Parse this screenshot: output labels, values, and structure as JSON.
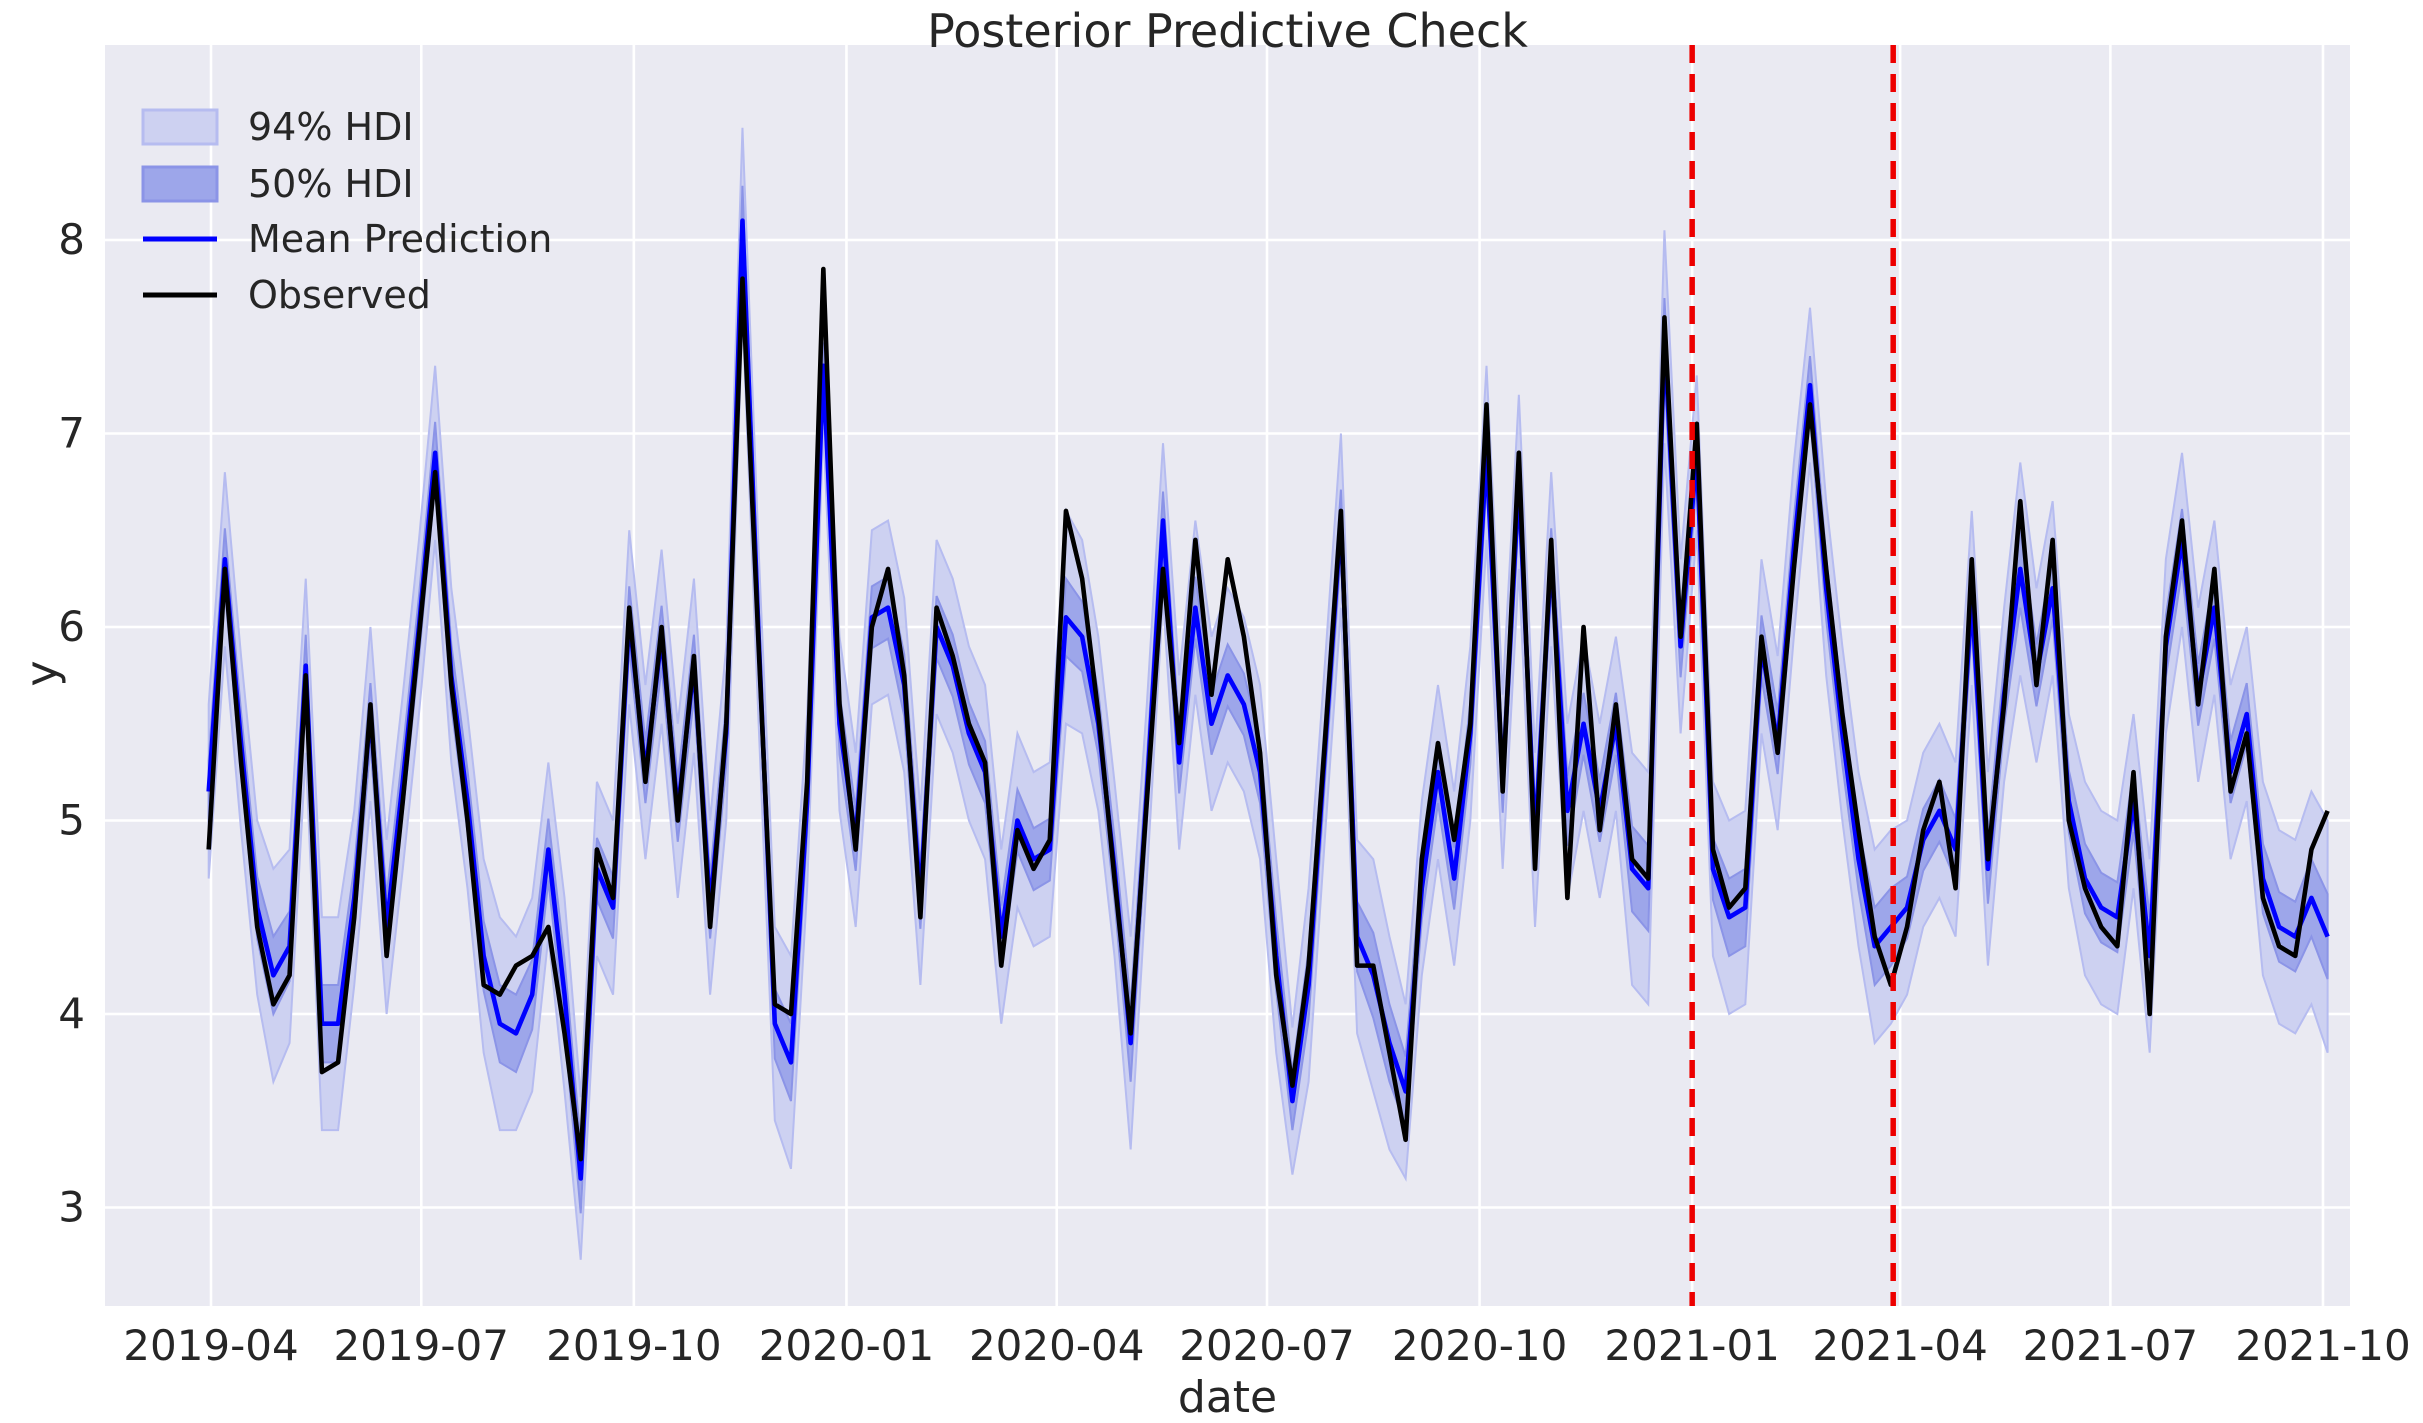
{
  "title": "Posterior Predictive Check",
  "xlabel": "date",
  "ylabel": "y",
  "colors": {
    "axes_background": "#eaeaf2",
    "grid": "#ffffff",
    "text": "#262626",
    "observed": "#000000",
    "mean": "#0000ff",
    "hdi94_fill": "#cdd1f1",
    "hdi94_edge": "#b6bcf0",
    "hdi50_fill": "#9da6ea",
    "hdi50_edge": "#8b94e7",
    "event_line": "#ed0000"
  },
  "legend": {
    "items": [
      {
        "label": "94% HDI",
        "swatch": "patch94"
      },
      {
        "label": "50% HDI",
        "swatch": "patch50"
      },
      {
        "label": "Mean Prediction",
        "swatch": "line-blue"
      },
      {
        "label": "Observed",
        "swatch": "line-black"
      }
    ]
  },
  "chart_data": {
    "type": "line",
    "title": "Posterior Predictive Check",
    "xlabel": "date",
    "ylabel": "y",
    "grid": true,
    "legend_position": "upper-left",
    "ylim": [
      2.5,
      9.0
    ],
    "yticks": [
      3,
      4,
      5,
      6,
      7,
      8
    ],
    "xtick_labels": [
      "2019-04",
      "2019-07",
      "2019-10",
      "2020-01",
      "2020-04",
      "2020-07",
      "2020-10",
      "2021-01",
      "2021-04",
      "2021-07",
      "2021-10"
    ],
    "xtick_dates": [
      "2019-04-01",
      "2019-07-01",
      "2019-10-01",
      "2020-01-01",
      "2020-04-01",
      "2020-07-01",
      "2020-10-01",
      "2021-01-01",
      "2021-04-01",
      "2021-07-01",
      "2021-10-01"
    ],
    "event_lines": {
      "style": "dashed-red-vertical",
      "dates": [
        "2021-01-01",
        "2021-03-29"
      ]
    },
    "x": [
      "2019-03-31",
      "2019-04-07",
      "2019-04-14",
      "2019-04-21",
      "2019-04-28",
      "2019-05-05",
      "2019-05-12",
      "2019-05-19",
      "2019-05-26",
      "2019-06-02",
      "2019-06-09",
      "2019-06-16",
      "2019-06-23",
      "2019-06-30",
      "2019-07-07",
      "2019-07-14",
      "2019-07-21",
      "2019-07-28",
      "2019-08-04",
      "2019-08-11",
      "2019-08-18",
      "2019-08-25",
      "2019-09-01",
      "2019-09-08",
      "2019-09-15",
      "2019-09-22",
      "2019-09-29",
      "2019-10-06",
      "2019-10-13",
      "2019-10-20",
      "2019-10-27",
      "2019-11-03",
      "2019-11-10",
      "2019-11-17",
      "2019-11-24",
      "2019-12-01",
      "2019-12-08",
      "2019-12-15",
      "2019-12-22",
      "2019-12-29",
      "2020-01-05",
      "2020-01-12",
      "2020-01-19",
      "2020-01-26",
      "2020-02-02",
      "2020-02-09",
      "2020-02-16",
      "2020-02-23",
      "2020-03-01",
      "2020-03-08",
      "2020-03-15",
      "2020-03-22",
      "2020-03-29",
      "2020-04-05",
      "2020-04-12",
      "2020-04-19",
      "2020-04-26",
      "2020-05-03",
      "2020-05-10",
      "2020-05-17",
      "2020-05-24",
      "2020-05-31",
      "2020-06-07",
      "2020-06-14",
      "2020-06-21",
      "2020-06-28",
      "2020-07-05",
      "2020-07-12",
      "2020-07-19",
      "2020-07-26",
      "2020-08-02",
      "2020-08-09",
      "2020-08-16",
      "2020-08-23",
      "2020-08-30",
      "2020-09-06",
      "2020-09-13",
      "2020-09-20",
      "2020-09-27",
      "2020-10-04",
      "2020-10-11",
      "2020-10-18",
      "2020-10-25",
      "2020-11-01",
      "2020-11-08",
      "2020-11-15",
      "2020-11-22",
      "2020-11-29",
      "2020-12-06",
      "2020-12-13",
      "2020-12-20",
      "2020-12-27",
      "2021-01-03",
      "2021-01-10",
      "2021-01-17",
      "2021-01-24",
      "2021-01-31",
      "2021-02-07",
      "2021-02-14",
      "2021-02-21",
      "2021-02-28",
      "2021-03-07",
      "2021-03-14",
      "2021-03-21",
      "2021-03-28",
      "2021-04-04",
      "2021-04-11",
      "2021-04-18",
      "2021-04-25",
      "2021-05-02",
      "2021-05-09",
      "2021-05-16",
      "2021-05-23",
      "2021-05-30",
      "2021-06-06",
      "2021-06-13",
      "2021-06-20",
      "2021-06-27",
      "2021-07-04",
      "2021-07-11",
      "2021-07-18",
      "2021-07-25",
      "2021-08-01",
      "2021-08-08",
      "2021-08-15",
      "2021-08-22",
      "2021-08-29",
      "2021-09-05",
      "2021-09-12",
      "2021-09-19",
      "2021-09-26",
      "2021-10-03"
    ],
    "series": [
      {
        "name": "Observed",
        "values": [
          4.85,
          6.3,
          5.3,
          4.45,
          4.05,
          4.2,
          5.75,
          3.7,
          3.75,
          4.5,
          5.6,
          4.3,
          5.1,
          5.95,
          6.8,
          5.7,
          5.0,
          4.15,
          4.1,
          4.25,
          4.3,
          4.45,
          3.9,
          3.25,
          4.85,
          4.6,
          6.1,
          5.2,
          6.0,
          5.0,
          5.85,
          4.45,
          5.5,
          7.8,
          5.9,
          4.05,
          4.0,
          5.2,
          7.85,
          5.6,
          4.85,
          6.0,
          6.3,
          5.75,
          4.5,
          6.1,
          5.85,
          5.5,
          5.3,
          4.25,
          4.95,
          4.75,
          4.9,
          6.6,
          6.25,
          5.55,
          4.7,
          3.9,
          5.1,
          6.3,
          5.4,
          6.45,
          5.65,
          6.35,
          5.95,
          5.35,
          4.2,
          3.63,
          4.25,
          5.4,
          6.6,
          4.25,
          4.25,
          3.8,
          3.35,
          4.8,
          5.4,
          4.9,
          5.5,
          7.15,
          5.15,
          6.9,
          4.75,
          6.45,
          4.6,
          6.0,
          4.95,
          5.6,
          4.8,
          4.7,
          7.6,
          5.95,
          7.05,
          4.85,
          4.55,
          4.65,
          5.95,
          5.35,
          6.3,
          7.15,
          6.3,
          5.55,
          4.95,
          4.4,
          4.15,
          4.45,
          4.95,
          5.2,
          4.65,
          6.35,
          4.8,
          5.6,
          6.65,
          5.7,
          6.45,
          5.0,
          4.65,
          4.45,
          4.35,
          5.25,
          4.0,
          5.95,
          6.55,
          5.6,
          6.3,
          5.15,
          5.45,
          4.6,
          4.35,
          4.3,
          4.85,
          5.05
        ]
      },
      {
        "name": "Mean Prediction",
        "values": [
          5.15,
          6.35,
          5.4,
          4.55,
          4.2,
          4.35,
          5.8,
          3.95,
          3.95,
          4.6,
          5.55,
          4.45,
          5.2,
          6.0,
          6.9,
          5.75,
          5.1,
          4.3,
          3.95,
          3.9,
          4.1,
          4.85,
          4.1,
          3.15,
          4.75,
          4.55,
          6.05,
          5.25,
          5.95,
          5.05,
          5.8,
          4.55,
          5.45,
          8.1,
          5.95,
          3.95,
          3.75,
          5.1,
          7.35,
          5.5,
          4.9,
          6.05,
          6.1,
          5.7,
          4.6,
          6.0,
          5.8,
          5.45,
          5.25,
          4.4,
          5.0,
          4.8,
          4.85,
          6.05,
          5.95,
          5.5,
          4.75,
          3.85,
          5.15,
          6.55,
          5.3,
          6.1,
          5.5,
          5.75,
          5.6,
          5.25,
          4.3,
          3.55,
          4.15,
          5.35,
          6.55,
          4.4,
          4.2,
          3.85,
          3.6,
          4.65,
          5.25,
          4.7,
          5.45,
          6.9,
          5.2,
          6.75,
          4.9,
          6.35,
          5.05,
          5.5,
          5.05,
          5.5,
          4.75,
          4.65,
          7.5,
          5.9,
          6.9,
          4.75,
          4.5,
          4.55,
          5.9,
          5.4,
          6.4,
          7.25,
          6.2,
          5.45,
          4.8,
          4.35,
          4.45,
          4.55,
          4.9,
          5.05,
          4.85,
          6.15,
          4.75,
          5.65,
          6.3,
          5.75,
          6.2,
          5.1,
          4.7,
          4.55,
          4.5,
          5.1,
          4.3,
          5.9,
          6.45,
          5.65,
          6.1,
          5.25,
          5.55,
          4.7,
          4.45,
          4.4,
          4.6,
          4.4
        ]
      }
    ],
    "hdi94_half_width": [
      0.45,
      0.45,
      0.45,
      0.45,
      0.55,
      0.5,
      0.45,
      0.55,
      0.55,
      0.45,
      0.45,
      0.45,
      0.45,
      0.45,
      0.45,
      0.45,
      0.45,
      0.5,
      0.55,
      0.5,
      0.5,
      0.45,
      0.5,
      0.42,
      0.45,
      0.45,
      0.45,
      0.45,
      0.45,
      0.45,
      0.45,
      0.45,
      0.45,
      0.48,
      0.45,
      0.5,
      0.55,
      0.45,
      0.32,
      0.45,
      0.45,
      0.45,
      0.45,
      0.45,
      0.45,
      0.45,
      0.45,
      0.45,
      0.45,
      0.45,
      0.45,
      0.45,
      0.45,
      0.55,
      0.5,
      0.45,
      0.45,
      0.55,
      0.45,
      0.4,
      0.45,
      0.45,
      0.45,
      0.45,
      0.45,
      0.45,
      0.5,
      0.38,
      0.5,
      0.45,
      0.45,
      0.5,
      0.6,
      0.55,
      0.45,
      0.45,
      0.45,
      0.45,
      0.45,
      0.45,
      0.45,
      0.45,
      0.45,
      0.45,
      0.45,
      0.45,
      0.45,
      0.45,
      0.6,
      0.6,
      0.55,
      0.45,
      0.4,
      0.45,
      0.5,
      0.5,
      0.45,
      0.45,
      0.45,
      0.4,
      0.45,
      0.45,
      0.45,
      0.5,
      0.5,
      0.45,
      0.45,
      0.45,
      0.45,
      0.45,
      0.5,
      0.45,
      0.55,
      0.45,
      0.45,
      0.45,
      0.5,
      0.5,
      0.5,
      0.45,
      0.5,
      0.45,
      0.45,
      0.45,
      0.45,
      0.45,
      0.45,
      0.5,
      0.5,
      0.5,
      0.55,
      0.6
    ],
    "hdi50_half_width": [
      0.16,
      0.16,
      0.16,
      0.16,
      0.2,
      0.18,
      0.16,
      0.2,
      0.2,
      0.16,
      0.16,
      0.16,
      0.16,
      0.16,
      0.16,
      0.16,
      0.16,
      0.18,
      0.2,
      0.2,
      0.18,
      0.16,
      0.18,
      0.18,
      0.16,
      0.16,
      0.16,
      0.16,
      0.16,
      0.16,
      0.16,
      0.16,
      0.16,
      0.18,
      0.16,
      0.18,
      0.2,
      0.16,
      0.12,
      0.16,
      0.16,
      0.16,
      0.16,
      0.16,
      0.16,
      0.16,
      0.16,
      0.16,
      0.16,
      0.16,
      0.16,
      0.16,
      0.16,
      0.2,
      0.18,
      0.16,
      0.16,
      0.2,
      0.16,
      0.15,
      0.16,
      0.16,
      0.16,
      0.16,
      0.16,
      0.16,
      0.18,
      0.15,
      0.18,
      0.16,
      0.16,
      0.18,
      0.22,
      0.2,
      0.18,
      0.16,
      0.16,
      0.16,
      0.16,
      0.16,
      0.16,
      0.16,
      0.16,
      0.16,
      0.18,
      0.16,
      0.16,
      0.16,
      0.22,
      0.22,
      0.2,
      0.16,
      0.15,
      0.16,
      0.2,
      0.2,
      0.16,
      0.16,
      0.16,
      0.15,
      0.16,
      0.16,
      0.16,
      0.2,
      0.2,
      0.16,
      0.16,
      0.16,
      0.16,
      0.16,
      0.18,
      0.16,
      0.2,
      0.16,
      0.16,
      0.16,
      0.18,
      0.18,
      0.18,
      0.16,
      0.2,
      0.16,
      0.16,
      0.16,
      0.16,
      0.16,
      0.16,
      0.18,
      0.18,
      0.18,
      0.2,
      0.22
    ]
  }
}
